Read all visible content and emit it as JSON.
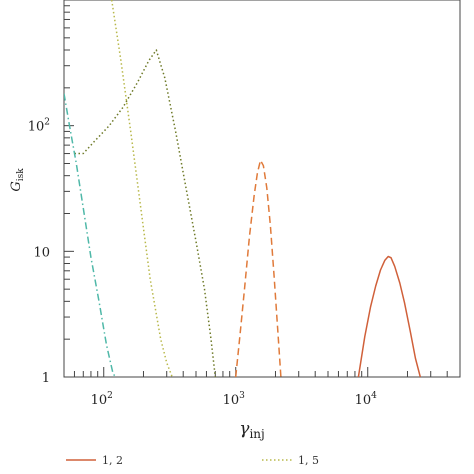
{
  "chart_data": {
    "type": "line",
    "xlabel": "γ",
    "xlabel_sub": "inj",
    "ylabel": "G",
    "ylabel_sub": "isk",
    "x_scale": "log",
    "y_scale": "log",
    "xlim": [
      50,
      50000
    ],
    "ylim": [
      1,
      1000
    ],
    "x_ticks": [
      {
        "value": 100,
        "base": "10",
        "exp": "2"
      },
      {
        "value": 1000,
        "base": "10",
        "exp": "3"
      },
      {
        "value": 10000,
        "base": "10",
        "exp": "4"
      }
    ],
    "y_ticks": [
      {
        "value": 1,
        "base": "1",
        "exp": ""
      },
      {
        "value": 10,
        "base": "10",
        "exp": ""
      },
      {
        "value": 100,
        "base": "10",
        "exp": "2"
      }
    ],
    "grid": false,
    "legend_position": "bottom",
    "series": [
      {
        "name": "1, 2",
        "color": "#d0603a",
        "dash": "solid",
        "points": [
          [
            8500,
            1.0
          ],
          [
            9500,
            2.1
          ],
          [
            10500,
            3.6
          ],
          [
            11500,
            5.3
          ],
          [
            12500,
            7.1
          ],
          [
            13500,
            8.5
          ],
          [
            14300,
            9.1
          ],
          [
            15000,
            8.9
          ],
          [
            16000,
            7.6
          ],
          [
            17500,
            5.6
          ],
          [
            19000,
            3.9
          ],
          [
            21000,
            2.3
          ],
          [
            23000,
            1.4
          ],
          [
            25000,
            1.0
          ]
        ]
      },
      {
        "name": "",
        "color": "#e07a3a",
        "dash": "dashed",
        "points": [
          [
            1000,
            1.0
          ],
          [
            1080,
            2.2
          ],
          [
            1170,
            5.2
          ],
          [
            1270,
            13
          ],
          [
            1380,
            28
          ],
          [
            1460,
            42
          ],
          [
            1540,
            53
          ],
          [
            1620,
            48
          ],
          [
            1720,
            32
          ],
          [
            1830,
            16
          ],
          [
            1950,
            6.5
          ],
          [
            2080,
            2.4
          ],
          [
            2200,
            1.0
          ]
        ]
      },
      {
        "name": "1, 5",
        "color": "#b8b84a",
        "dash": "dotted",
        "points": [
          [
            115,
            1000
          ],
          [
            135,
            330
          ],
          [
            160,
            90
          ],
          [
            190,
            23
          ],
          [
            225,
            6
          ],
          [
            270,
            2
          ],
          [
            300,
            1.3
          ],
          [
            330,
            1.0
          ]
        ]
      },
      {
        "name": "",
        "color": "#6e7a28",
        "dash": "dotted",
        "points": [
          [
            60,
            60
          ],
          [
            70,
            60
          ],
          [
            85,
            75
          ],
          [
            110,
            100
          ],
          [
            140,
            140
          ],
          [
            180,
            220
          ],
          [
            220,
            330
          ],
          [
            250,
            400
          ],
          [
            290,
            240
          ],
          [
            350,
            90
          ],
          [
            420,
            32
          ],
          [
            500,
            12
          ],
          [
            580,
            5
          ],
          [
            650,
            2
          ],
          [
            700,
            1.0
          ]
        ]
      },
      {
        "name": "",
        "color": "#4fb8a8",
        "dash": "dashdot",
        "points": [
          [
            50,
            180
          ],
          [
            55,
            100
          ],
          [
            62,
            50
          ],
          [
            70,
            22
          ],
          [
            80,
            9
          ],
          [
            92,
            4
          ],
          [
            105,
            1.8
          ],
          [
            118,
            1.05
          ],
          [
            125,
            1.0
          ]
        ]
      }
    ]
  }
}
